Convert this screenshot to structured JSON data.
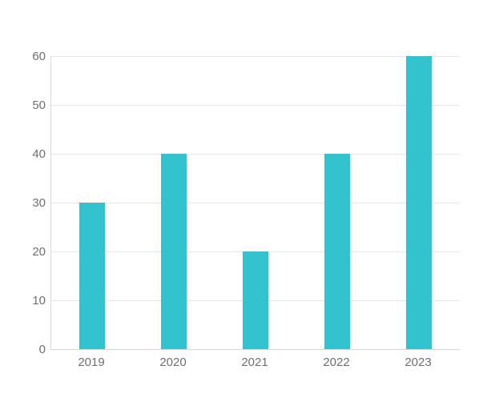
{
  "chart_data": {
    "type": "bar",
    "title": "",
    "xlabel": "",
    "ylabel": "",
    "categories": [
      "2019",
      "2020",
      "2021",
      "2022",
      "2023"
    ],
    "values": [
      30,
      40,
      20,
      40,
      60
    ],
    "ylim": [
      0,
      60
    ],
    "ytick_step": 10,
    "ytick_labels": [
      "0",
      "10",
      "20",
      "30",
      "40",
      "50",
      "60"
    ],
    "grid": "horizontal",
    "legend": "none",
    "bar_color": "#32c3ce",
    "grid_color": "#e7e7e7",
    "axis_line_color": "#d9d9d9",
    "label_color": "#6f6f6f",
    "background_color": "#ffffff"
  }
}
